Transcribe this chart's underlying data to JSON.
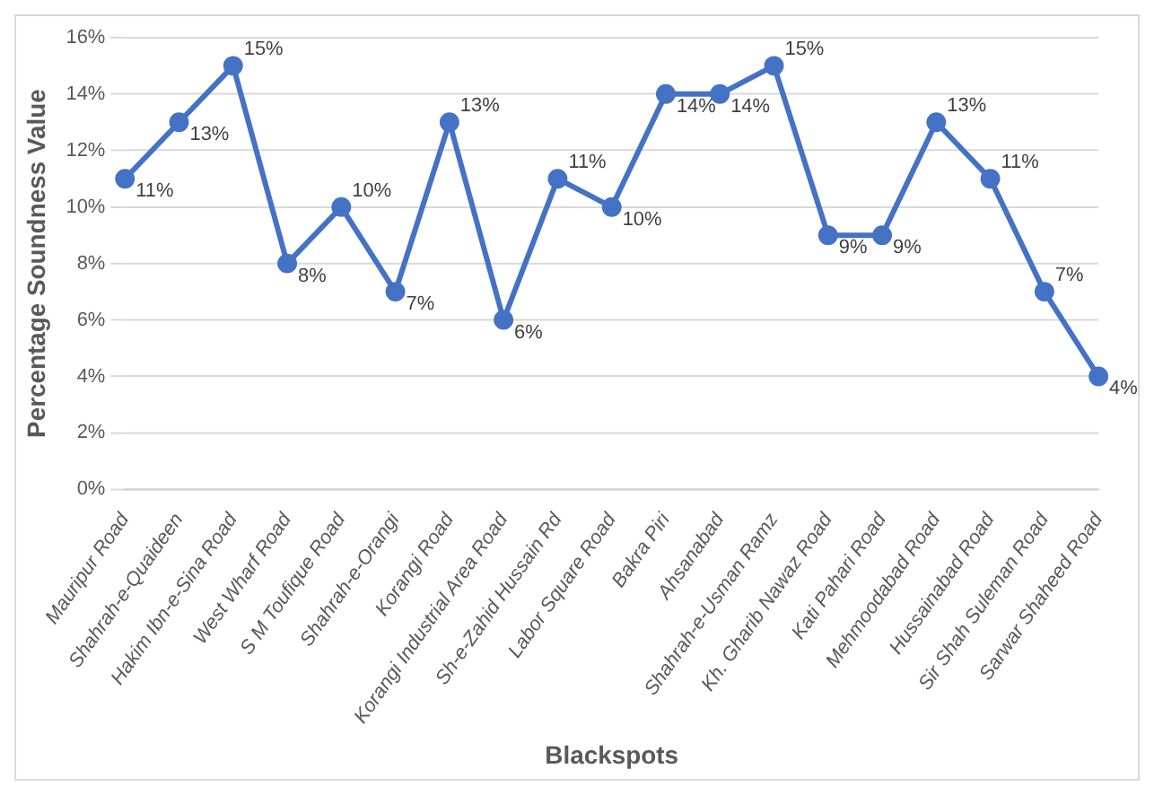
{
  "chart_data": {
    "type": "line",
    "xlabel": "Blackspots",
    "ylabel": "Percentage Soundness Value",
    "categories": [
      "Mauripur Road",
      "Shahrah-e-Quaideen",
      "Hakim Ibn-e-Sina Road",
      "West Wharf Road",
      "S M Toufique Road",
      "Shahrah-e-Orangi",
      "Korangi Road",
      "Korangi Industrial Area Road",
      "Sh-e-Zahid Hussain Rd",
      "Labor Square Road",
      "Bakra Piri",
      "Ahsanabad",
      "Shahrah-e-Usman Ramz",
      "Kh. Gharib Nawaz Road",
      "Kati Pahari Road",
      "Mehmoodabad Road",
      "Hussainabad Road",
      "Sir Shah Suleman Road",
      "Sarwar Shaheed Road"
    ],
    "series": [
      {
        "color": "#4472c4",
        "values": [
          11,
          13,
          15,
          8,
          10,
          7,
          13,
          6,
          11,
          10,
          14,
          14,
          15,
          9,
          9,
          13,
          11,
          7,
          4
        ],
        "value_labels": [
          "11%",
          "13%",
          "15%",
          "8%",
          "10%",
          "7%",
          "13%",
          "6%",
          "11%",
          "10%",
          "14%",
          "14%",
          "15%",
          "9%",
          "9%",
          "13%",
          "11%",
          "7%",
          "4%"
        ]
      }
    ],
    "ylim": [
      0,
      16
    ],
    "yticks": [
      {
        "value": 0,
        "label": "0%"
      },
      {
        "value": 2,
        "label": "2%"
      },
      {
        "value": 4,
        "label": "4%"
      },
      {
        "value": 6,
        "label": "6%"
      },
      {
        "value": 8,
        "label": "8%"
      },
      {
        "value": 10,
        "label": "10%"
      },
      {
        "value": 12,
        "label": "12%"
      },
      {
        "value": 14,
        "label": "14%"
      },
      {
        "value": 16,
        "label": "16%"
      }
    ],
    "grid": "y",
    "marker": "circle",
    "line_style": "solid",
    "legend": false
  }
}
